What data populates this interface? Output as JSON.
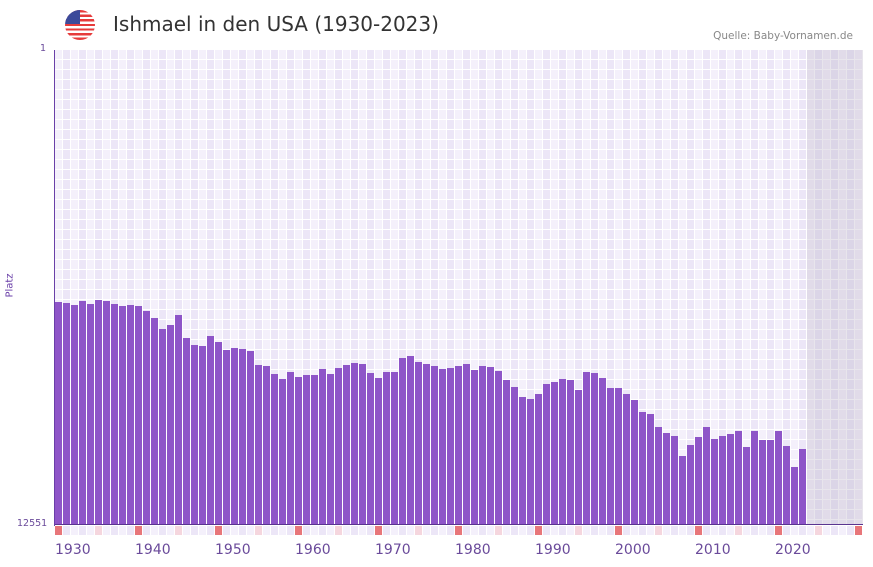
{
  "header": {
    "title": "Ishmael in den USA (1930-2023)",
    "source": "Quelle: Baby-Vornamen.de",
    "flag_icon": "us-flag-icon"
  },
  "chart_data": {
    "type": "bar",
    "title": "Ishmael in den USA (1930-2023)",
    "xlabel": "",
    "ylabel": "Platz",
    "ylim": [
      12551,
      1
    ],
    "y_tick_labels": [
      "1",
      "12551"
    ],
    "x_range": [
      1930,
      2030
    ],
    "x_tick_labels": [
      "1930",
      "1940",
      "1950",
      "1960",
      "1970",
      "1980",
      "1990",
      "2000",
      "2010",
      "2020"
    ],
    "grid": true,
    "colors": {
      "bar": "#8e55c8",
      "decade_marker": "#e8767a",
      "half_decade_marker": "#f5d6de",
      "future_shade": "#e4e0ea"
    },
    "years": [
      1930,
      1931,
      1932,
      1933,
      1934,
      1935,
      1936,
      1937,
      1938,
      1939,
      1940,
      1941,
      1942,
      1943,
      1944,
      1945,
      1946,
      1947,
      1948,
      1949,
      1950,
      1951,
      1952,
      1953,
      1954,
      1955,
      1956,
      1957,
      1958,
      1959,
      1960,
      1961,
      1962,
      1963,
      1964,
      1965,
      1966,
      1967,
      1968,
      1969,
      1970,
      1971,
      1972,
      1973,
      1974,
      1975,
      1976,
      1977,
      1978,
      1979,
      1980,
      1981,
      1982,
      1983,
      1984,
      1985,
      1986,
      1987,
      1988,
      1989,
      1990,
      1991,
      1992,
      1993,
      1994,
      1995,
      1996,
      1997,
      1998,
      1999,
      2000,
      2001,
      2002,
      2003,
      2004,
      2005,
      2006,
      2007,
      2008,
      2009,
      2010,
      2011,
      2012,
      2013,
      2014,
      2015,
      2016,
      2017,
      2018,
      2019,
      2020,
      2021,
      2022,
      2023
    ],
    "values": [
      6659,
      6685,
      6738,
      6632,
      6712,
      6606,
      6632,
      6712,
      6765,
      6738,
      6765,
      6897,
      7082,
      7373,
      7267,
      7002,
      7610,
      7795,
      7822,
      7557,
      7716,
      7927,
      7874,
      7901,
      7953,
      8323,
      8350,
      8561,
      8693,
      8508,
      8640,
      8587,
      8587,
      8429,
      8561,
      8402,
      8323,
      8270,
      8297,
      8535,
      8667,
      8508,
      8508,
      8138,
      8085,
      8244,
      8297,
      8350,
      8429,
      8402,
      8350,
      8297,
      8455,
      8350,
      8376,
      8481,
      8720,
      8905,
      9169,
      9222,
      9090,
      8825,
      8772,
      8693,
      8720,
      8984,
      8508,
      8535,
      8667,
      8931,
      8931,
      9090,
      9249,
      9566,
      9618,
      9962,
      10120,
      10199,
      10727,
      10437,
      10226,
      9962,
      10279,
      10199,
      10146,
      10067,
      10490,
      10067,
      10305,
      10305,
      10067,
      10463,
      11018,
      10543
    ]
  }
}
